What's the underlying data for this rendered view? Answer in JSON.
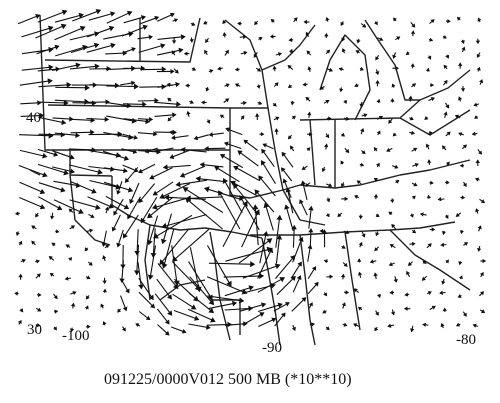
{
  "map": {
    "caption": "091225/0000V012 500 MB (*10**10)",
    "lat_labels": {
      "north": "40",
      "south": "30"
    },
    "lon_labels": {
      "west": "-100",
      "center": "-90",
      "east": "-80"
    },
    "colors": {
      "ink": "#111111",
      "background": "#ffffff"
    }
  }
}
